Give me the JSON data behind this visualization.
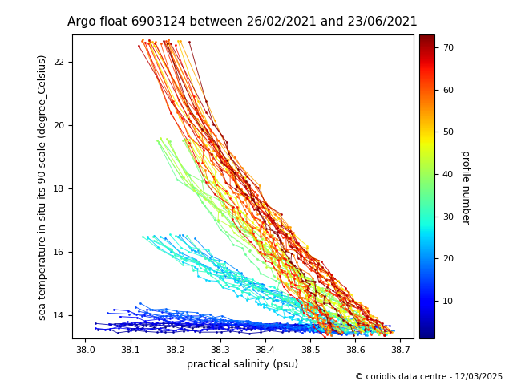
{
  "title": "Argo float 6903124 between 26/02/2021 and 23/06/2021",
  "xlabel": "practical salinity (psu)",
  "ylabel": "sea temperature in-situ its-90 scale (degree_Celsius)",
  "colorbar_label": "profile number",
  "copyright": "© coriolis data centre - 12/03/2025",
  "xlim": [
    37.97,
    38.73
  ],
  "ylim": [
    13.25,
    22.85
  ],
  "xticks": [
    38.0,
    38.1,
    38.2,
    38.3,
    38.4,
    38.5,
    38.6,
    38.7
  ],
  "yticks": [
    14,
    16,
    18,
    20,
    22
  ],
  "cmap": "jet",
  "vmin": 1,
  "vmax": 73,
  "n_profiles": 73,
  "background_color": "#ffffff",
  "figsize": [
    6.4,
    4.8
  ],
  "dpi": 100
}
